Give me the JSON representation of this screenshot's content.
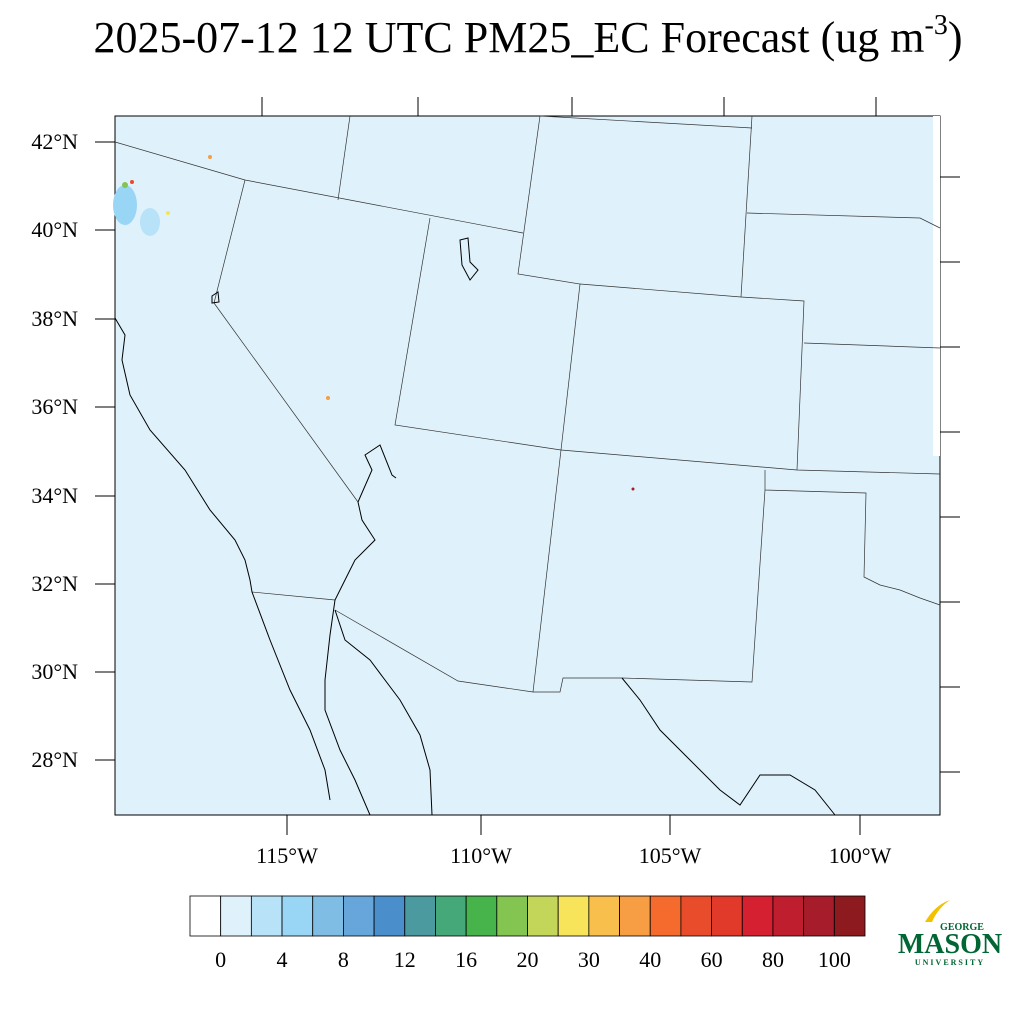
{
  "title": {
    "main": "2025-07-12 12 UTC PM25_EC Forecast (ug m",
    "superscript": "-3",
    "end": ")"
  },
  "map": {
    "background": "#dff1fb",
    "lat_labels": [
      "42°N",
      "40°N",
      "38°N",
      "36°N",
      "34°N",
      "32°N",
      "30°N",
      "28°N"
    ],
    "lon_labels": [
      "115°W",
      "110°W",
      "105°W",
      "100°W"
    ]
  },
  "colorbar": {
    "colors": [
      "#ffffff",
      "#dff1fb",
      "#b8e2f7",
      "#99d5f5",
      "#80bde5",
      "#66a6da",
      "#4a8fcc",
      "#4a9aa0",
      "#44a878",
      "#46b44a",
      "#84c451",
      "#c4d65a",
      "#f7e45a",
      "#f9bf4d",
      "#f79d43",
      "#f46b2d",
      "#e84c2a",
      "#e23a2a",
      "#d42030",
      "#be1e2d",
      "#a61c2a",
      "#8c1a1e"
    ],
    "labels": [
      0,
      4,
      8,
      12,
      16,
      20,
      30,
      40,
      60,
      80,
      100
    ]
  },
  "logo": {
    "top": "GEORGE",
    "name": "MASON",
    "bottom": "UNIVERSITY"
  }
}
